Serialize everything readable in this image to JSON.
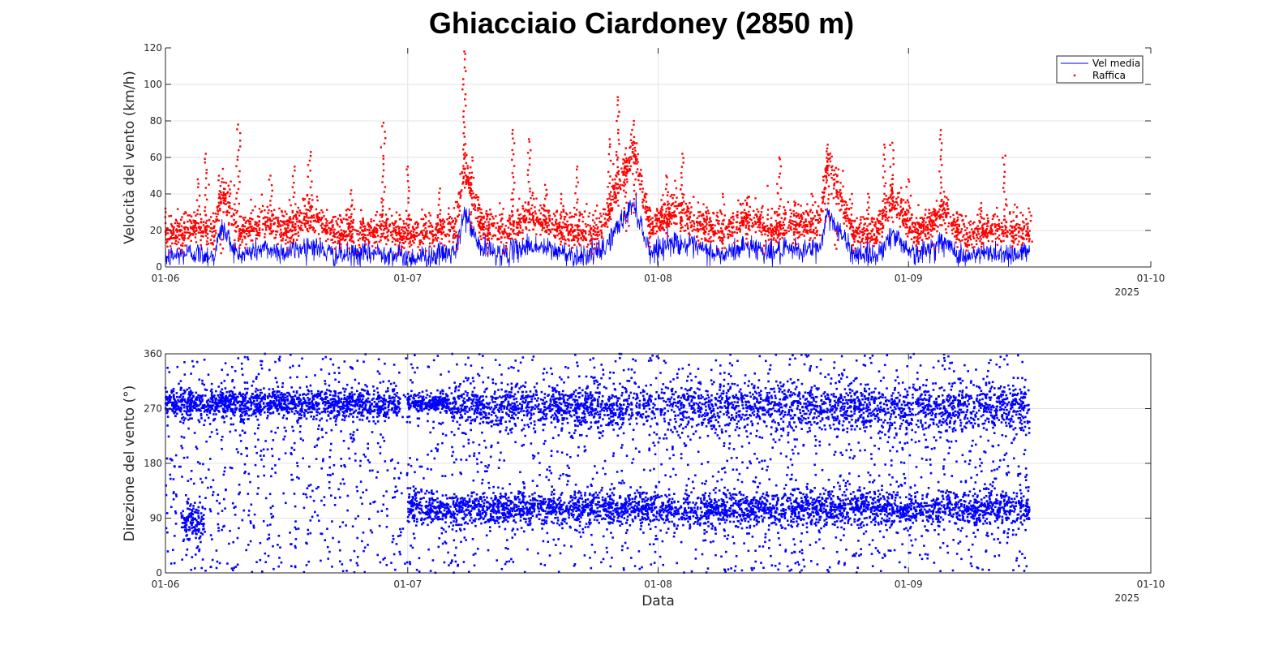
{
  "title": "Ghiacciaio Ciardoney (2850 m)",
  "year_label": "2025",
  "colors": {
    "mean": "#0000ff",
    "gust": "#ff0000",
    "dir": "#0000ff",
    "grid": "#e3e3e3",
    "axis": "#262626"
  },
  "chart_data": [
    {
      "type": "line",
      "ylabel": "Velocità del vento (km/h)",
      "xlabel": "",
      "ylim": [
        0,
        120
      ],
      "yticks": [
        0,
        20,
        40,
        60,
        80,
        100,
        120
      ],
      "xlim": [
        "2025-06-01",
        "2025-10-01"
      ],
      "xticks": [
        "01-06",
        "01-07",
        "01-08",
        "01-09",
        "01-10"
      ],
      "legend": {
        "placement": "top-right",
        "entries": [
          "Vel media",
          "Raffica"
        ]
      },
      "grid": true,
      "series": [
        {
          "name": "Vel media",
          "style": "line",
          "color": "#0000ff",
          "x": [
            "2025-06-01",
            "2025-06-04",
            "2025-06-07",
            "2025-06-08",
            "2025-06-10",
            "2025-06-13",
            "2025-06-16",
            "2025-06-19",
            "2025-06-22",
            "2025-06-25",
            "2025-06-28",
            "2025-07-01",
            "2025-07-04",
            "2025-07-07",
            "2025-07-08",
            "2025-07-10",
            "2025-07-13",
            "2025-07-16",
            "2025-07-19",
            "2025-07-22",
            "2025-07-25",
            "2025-07-27",
            "2025-07-29",
            "2025-07-31",
            "2025-08-03",
            "2025-08-06",
            "2025-08-09",
            "2025-08-12",
            "2025-08-15",
            "2025-08-18",
            "2025-08-21",
            "2025-08-22",
            "2025-08-25",
            "2025-08-28",
            "2025-08-30",
            "2025-09-02",
            "2025-09-05",
            "2025-09-08",
            "2025-09-11",
            "2025-09-14",
            "2025-09-16"
          ],
          "y": [
            5,
            8,
            6,
            22,
            6,
            10,
            8,
            12,
            6,
            7,
            8,
            5,
            6,
            8,
            30,
            10,
            7,
            12,
            9,
            6,
            8,
            22,
            35,
            8,
            14,
            10,
            6,
            12,
            8,
            9,
            10,
            30,
            8,
            6,
            18,
            6,
            14,
            5,
            8,
            7,
            8
          ]
        },
        {
          "name": "Raffica",
          "style": "points",
          "color": "#ff0000",
          "x": [
            "2025-06-01",
            "2025-06-03",
            "2025-06-05",
            "2025-06-06",
            "2025-06-08",
            "2025-06-10",
            "2025-06-11",
            "2025-06-14",
            "2025-06-16",
            "2025-06-17",
            "2025-06-19",
            "2025-06-22",
            "2025-06-24",
            "2025-06-25",
            "2025-06-28",
            "2025-07-01",
            "2025-07-03",
            "2025-07-05",
            "2025-07-07",
            "2025-07-08",
            "2025-07-09",
            "2025-07-11",
            "2025-07-13",
            "2025-07-14",
            "2025-07-16",
            "2025-07-18",
            "2025-07-20",
            "2025-07-22",
            "2025-07-24",
            "2025-07-26",
            "2025-07-27",
            "2025-07-28",
            "2025-07-29",
            "2025-07-31",
            "2025-08-02",
            "2025-08-04",
            "2025-08-06",
            "2025-08-09",
            "2025-08-12",
            "2025-08-14",
            "2025-08-16",
            "2025-08-18",
            "2025-08-20",
            "2025-08-22",
            "2025-08-23",
            "2025-08-25",
            "2025-08-27",
            "2025-08-29",
            "2025-08-30",
            "2025-09-01",
            "2025-09-04",
            "2025-09-05",
            "2025-09-07",
            "2025-09-10",
            "2025-09-13",
            "2025-09-14",
            "2025-09-16"
          ],
          "y": [
            32,
            20,
            48,
            62,
            15,
            78,
            25,
            50,
            20,
            55,
            63,
            18,
            42,
            12,
            79,
            55,
            20,
            43,
            25,
            118,
            60,
            20,
            20,
            75,
            70,
            45,
            40,
            55,
            20,
            70,
            93,
            55,
            80,
            22,
            50,
            62,
            30,
            40,
            35,
            20,
            60,
            35,
            40,
            67,
            20,
            40,
            40,
            67,
            68,
            48,
            25,
            75,
            30,
            35,
            61,
            30,
            30
          ]
        }
      ]
    },
    {
      "type": "scatter",
      "ylabel": "Direzione del vento (°)",
      "xlabel": "Data",
      "ylim": [
        0,
        360
      ],
      "yticks": [
        0,
        90,
        180,
        270,
        360
      ],
      "xlim": [
        "2025-06-01",
        "2025-10-01"
      ],
      "xticks": [
        "01-06",
        "01-07",
        "01-08",
        "01-09",
        "01-10"
      ],
      "grid": true,
      "clusters": [
        {
          "x_start": "2025-06-01",
          "x_end": "2025-06-30",
          "y_center": 278,
          "spread": 12
        },
        {
          "x_start": "2025-07-01",
          "x_end": "2025-07-06",
          "y_center": 280,
          "spread": 8
        },
        {
          "x_start": "2025-07-01",
          "x_end": "2025-09-16",
          "y_center": 105,
          "spread": 14
        },
        {
          "x_start": "2025-07-06",
          "x_end": "2025-09-16",
          "y_center": 272,
          "spread": 18
        },
        {
          "x_start": "2025-06-03",
          "x_end": "2025-06-06",
          "y_center": 85,
          "spread": 18
        }
      ]
    }
  ]
}
